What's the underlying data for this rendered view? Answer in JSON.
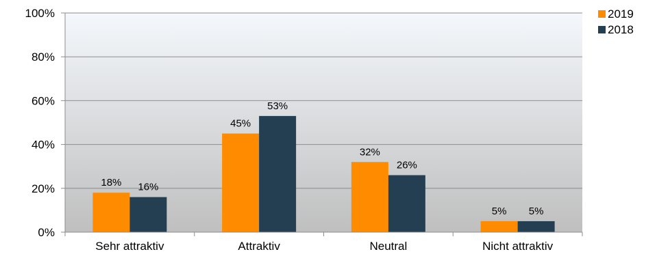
{
  "chart_data": {
    "type": "bar",
    "categories": [
      "Sehr attraktiv",
      "Attraktiv",
      "Neutral",
      "Nicht attraktiv"
    ],
    "series": [
      {
        "name": "2019",
        "values": [
          18,
          45,
          32,
          5
        ],
        "labels": [
          "18%",
          "45%",
          "32%",
          "5%"
        ],
        "color": "#ff8c00"
      },
      {
        "name": "2018",
        "values": [
          16,
          53,
          26,
          5
        ],
        "labels": [
          "16%",
          "53%",
          "26%",
          "5%"
        ],
        "color": "#243f52"
      }
    ],
    "y_ticks": [
      "0%",
      "20%",
      "40%",
      "60%",
      "80%",
      "100%"
    ],
    "ylim": [
      0,
      100
    ],
    "grid": true,
    "legend_position": "top-right",
    "plot_background": {
      "top": "#f4f8fc",
      "bottom": "#bfbfbf"
    }
  }
}
